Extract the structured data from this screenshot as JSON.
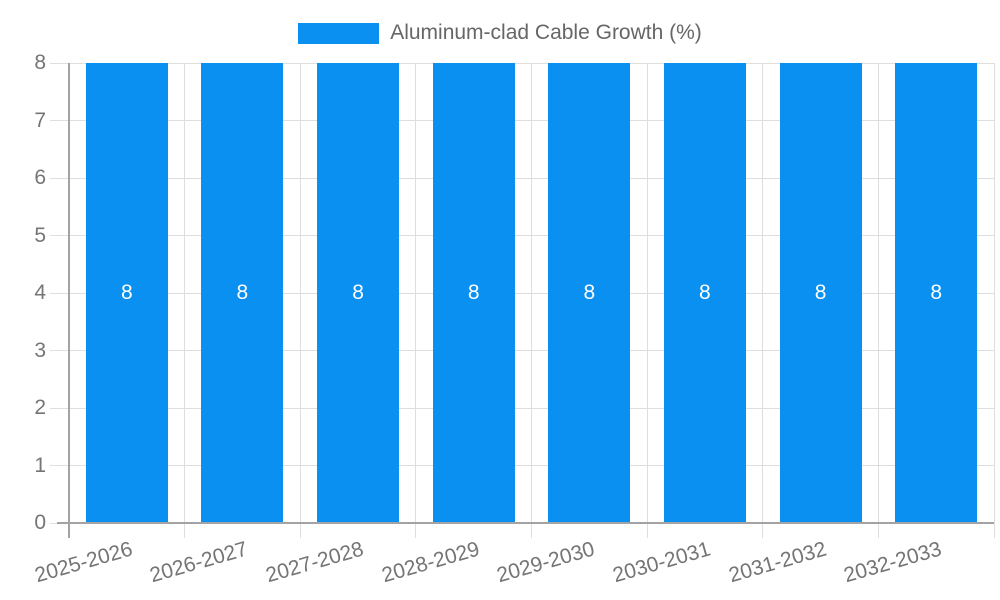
{
  "chart_data": {
    "type": "bar",
    "legend": {
      "label": "Aluminum-clad Cable Growth (%)",
      "position": "top"
    },
    "categories": [
      "2025-2026",
      "2026-2027",
      "2027-2028",
      "2028-2029",
      "2029-2030",
      "2030-2031",
      "2031-2032",
      "2032-2033"
    ],
    "series": [
      {
        "name": "Aluminum-clad Cable Growth (%)",
        "values": [
          8,
          8,
          8,
          8,
          8,
          8,
          8,
          8
        ]
      }
    ],
    "bar_value_labels": [
      "8",
      "8",
      "8",
      "8",
      "8",
      "8",
      "8",
      "8"
    ],
    "yticks": [
      0,
      1,
      2,
      3,
      4,
      5,
      6,
      7,
      8
    ],
    "ylim": [
      0,
      8
    ],
    "xlabel": "",
    "ylabel": "",
    "grid": true,
    "legend_position": "top-center",
    "colors": {
      "bar": "#0a90f1",
      "bar_label": "#ffffff",
      "grid": "#dedede",
      "axis": "#a3a3a3",
      "tick_text": "#757575",
      "legend_text": "#666666",
      "background": "#ffffff"
    }
  }
}
